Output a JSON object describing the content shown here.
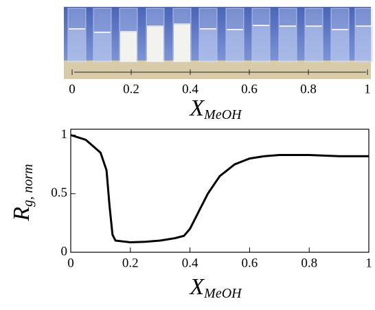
{
  "chart_data": [
    {
      "type": "image",
      "xlim": [
        0,
        1
      ],
      "xticks": [
        0,
        0.2,
        0.4,
        0.6,
        0.8,
        1
      ],
      "xlabel": "X",
      "xlabel_sub": "MeOH"
    },
    {
      "type": "line",
      "color": "#000000",
      "xlim": [
        0,
        1
      ],
      "ylim": [
        0,
        1.05
      ],
      "xticks": [
        0,
        0.2,
        0.4,
        0.6,
        0.8,
        1
      ],
      "yticks": [
        0,
        0.5,
        1
      ],
      "xlabel": "X",
      "xlabel_sub": "MeOH",
      "ylabel": "R",
      "ylabel_sub": "g, norm",
      "x": [
        0,
        0.05,
        0.1,
        0.12,
        0.13,
        0.14,
        0.15,
        0.2,
        0.25,
        0.3,
        0.35,
        0.38,
        0.4,
        0.43,
        0.46,
        0.5,
        0.55,
        0.6,
        0.65,
        0.7,
        0.8,
        0.9,
        1
      ],
      "y": [
        1,
        0.96,
        0.85,
        0.7,
        0.4,
        0.15,
        0.1,
        0.085,
        0.09,
        0.1,
        0.12,
        0.14,
        0.2,
        0.35,
        0.5,
        0.65,
        0.75,
        0.8,
        0.82,
        0.83,
        0.83,
        0.82,
        0.82
      ]
    }
  ]
}
